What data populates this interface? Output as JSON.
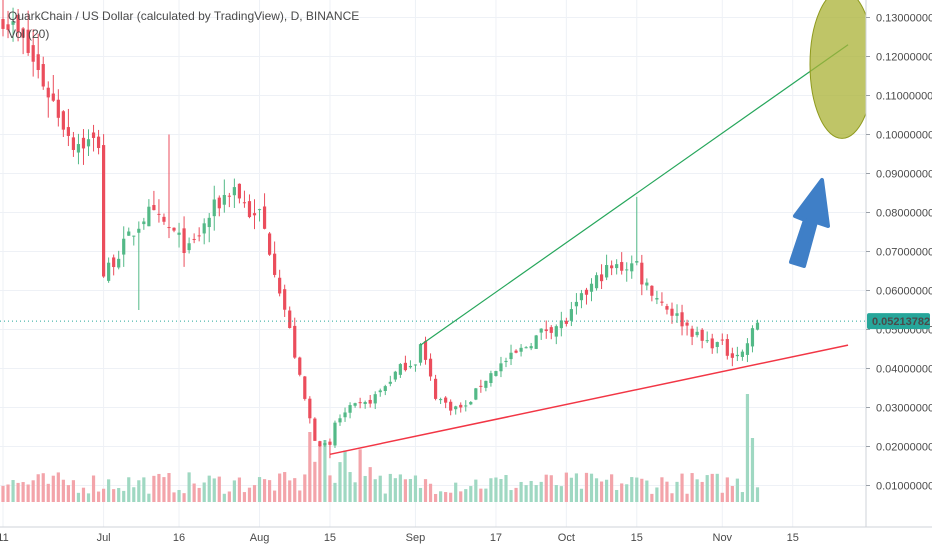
{
  "header": {
    "title": "QuarkChain / US Dollar (calculated by TradingView), D, BINANCE",
    "volume_label": "Vol (20)"
  },
  "colors": {
    "up": "#53b987",
    "down": "#eb4d5c",
    "up_volume": "#9fd8c2",
    "down_volume": "#f3a4aa",
    "upper_trendline": "#26a65b",
    "lower_trendline": "#f23645",
    "price_line": "#26a69a",
    "price_label_bg": "#26a69a",
    "arrow": "#3f7fc7",
    "target_ellipse": "#a9b234",
    "grid": "#eef1f6"
  },
  "chart_data": {
    "type": "candlestick",
    "title": "QuarkChain / US Dollar (calculated by TradingView), D, BINANCE",
    "xlabel": "",
    "ylabel": "",
    "interval": "D",
    "exchange": "BINANCE",
    "ylim": [
      0.0,
      0.135
    ],
    "y_ticks": [
      "0.13000000",
      "0.12000000",
      "0.11000000",
      "0.10000000",
      "0.09000000",
      "0.08000000",
      "0.07000000",
      "0.06000000",
      "0.05000000",
      "0.04000000",
      "0.03000000",
      "0.02000000",
      "0.01000000"
    ],
    "x_ticks": [
      "11",
      "Jul",
      "16",
      "Aug",
      "15",
      "Sep",
      "17",
      "Oct",
      "15",
      "Nov",
      "15"
    ],
    "last_price": "0.05213782",
    "volume_indicator": "Vol (20)",
    "daily_close_series": [
      {
        "from": "2018-06-11",
        "to": "2018-06-25",
        "close": [
          0.131,
          0.122,
          0.11,
          0.098
        ]
      },
      {
        "from": "2018-07-01",
        "to": "2018-07-31",
        "close": [
          0.064,
          0.072,
          0.08,
          0.076,
          0.07,
          0.08,
          0.087,
          0.078
        ]
      },
      {
        "from": "2018-08-01",
        "to": "2018-08-15",
        "close": [
          0.08,
          0.067,
          0.052,
          0.035,
          0.021,
          0.02
        ]
      },
      {
        "from": "2018-08-16",
        "to": "2018-09-01",
        "close": [
          0.026,
          0.03,
          0.031,
          0.035,
          0.04,
          0.042
        ]
      },
      {
        "from": "2018-09-02",
        "to": "2018-09-17",
        "close": [
          0.046,
          0.033,
          0.03,
          0.03,
          0.036,
          0.04
        ]
      },
      {
        "from": "2018-09-18",
        "to": "2018-10-01",
        "close": [
          0.041,
          0.045,
          0.05,
          0.052
        ]
      },
      {
        "from": "2018-10-02",
        "to": "2018-10-15",
        "close": [
          0.054,
          0.06,
          0.065,
          0.066,
          0.067
        ]
      },
      {
        "from": "2018-10-16",
        "to": "2018-11-01",
        "close": [
          0.063,
          0.057,
          0.052,
          0.047,
          0.046
        ]
      },
      {
        "from": "2018-11-02",
        "to": "2018-11-08",
        "close": [
          0.044,
          0.044,
          0.052
        ]
      }
    ],
    "annotations": [
      {
        "name": "upper-trendline",
        "from": {
          "date": "2018-09-02",
          "price": 0.046
        },
        "to": {
          "date": "2018-10-15",
          "price": 0.084
        },
        "extends_to": {
          "date": "2018-11-26",
          "price": 0.123
        }
      },
      {
        "name": "lower-trendline",
        "from": {
          "date": "2018-08-15",
          "price": 0.018
        },
        "to": {
          "date": "2018-11-26",
          "price": 0.046
        }
      },
      {
        "name": "target-zone",
        "shape": "ellipse",
        "price_range": [
          0.099,
          0.137
        ]
      },
      {
        "name": "up-arrow",
        "shape": "arrow",
        "direction": "up-right"
      }
    ]
  }
}
